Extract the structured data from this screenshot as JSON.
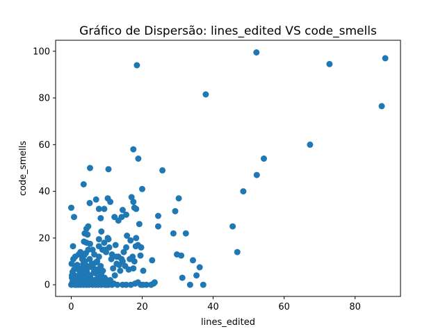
{
  "chart_data": {
    "type": "scatter",
    "title": "Gráfico de Dispersão: lines_edited VS code_smells",
    "xlabel": "lines_edited",
    "ylabel": "code_smells",
    "xlim": [
      -4.4,
      92.8
    ],
    "ylim": [
      -5,
      104.7
    ],
    "xticks": [
      0,
      20,
      40,
      60,
      80
    ],
    "yticks": [
      0,
      20,
      40,
      60,
      80,
      100
    ],
    "xtick_labels": [
      "0",
      "20",
      "40",
      "60",
      "80"
    ],
    "ytick_labels": [
      "0",
      "20",
      "40",
      "60",
      "80",
      "100"
    ],
    "grid": false,
    "marker_color": "#1f77b4",
    "series": [
      {
        "points": [
          [
            0,
            0
          ],
          [
            0.3,
            1
          ],
          [
            0.5,
            2
          ],
          [
            0.7,
            0.5
          ],
          [
            0.2,
            3
          ],
          [
            0.9,
            4
          ],
          [
            1,
            0
          ],
          [
            1.2,
            1.5
          ],
          [
            1.5,
            0
          ],
          [
            1.8,
            2.5
          ],
          [
            2,
            0
          ],
          [
            2.2,
            1
          ],
          [
            2.5,
            3.5
          ],
          [
            2.7,
            0
          ],
          [
            3,
            1
          ],
          [
            3.2,
            2
          ],
          [
            3.5,
            0
          ],
          [
            3.8,
            5
          ],
          [
            4,
            1
          ],
          [
            4.3,
            0
          ],
          [
            4.6,
            2
          ],
          [
            5,
            0
          ],
          [
            5.3,
            3
          ],
          [
            5.6,
            1
          ],
          [
            6,
            0
          ],
          [
            6.4,
            2
          ],
          [
            6.8,
            0
          ],
          [
            7.2,
            1
          ],
          [
            7.6,
            0
          ],
          [
            8,
            3
          ],
          [
            8.5,
            0
          ],
          [
            9,
            1.5
          ],
          [
            9.5,
            0
          ],
          [
            10,
            2
          ],
          [
            10.5,
            0
          ],
          [
            11,
            1
          ],
          [
            11.5,
            0
          ],
          [
            12,
            0.5
          ],
          [
            0.4,
            5.5
          ],
          [
            0.8,
            6.5
          ],
          [
            1.3,
            7.5
          ],
          [
            1.7,
            8.5
          ],
          [
            2.3,
            6
          ],
          [
            2.9,
            7
          ],
          [
            3.4,
            9
          ],
          [
            3.9,
            10
          ],
          [
            4.4,
            8
          ],
          [
            0.1,
            9
          ],
          [
            0.6,
            11
          ],
          [
            1.1,
            12
          ],
          [
            0.5,
            16.5
          ],
          [
            2.1,
            13
          ],
          [
            2.6,
            14
          ],
          [
            3.1,
            11
          ],
          [
            3.6,
            12.5
          ],
          [
            4.1,
            13.5
          ],
          [
            4.8,
            15
          ],
          [
            5.2,
            11
          ],
          [
            5.8,
            9
          ],
          [
            6.3,
            7
          ],
          [
            6.8,
            5
          ],
          [
            7.3,
            10
          ],
          [
            7.8,
            12
          ],
          [
            8.3,
            8
          ],
          [
            8.8,
            15
          ],
          [
            9.3,
            18
          ],
          [
            9.8,
            14
          ],
          [
            10.3,
            20
          ],
          [
            10.7,
            16
          ],
          [
            11.3,
            11
          ],
          [
            11.8,
            7
          ],
          [
            12.3,
            4
          ],
          [
            12.8,
            9
          ],
          [
            13.3,
            12
          ],
          [
            13.8,
            6
          ],
          [
            14.2,
            11
          ],
          [
            14.8,
            14
          ],
          [
            15.2,
            8
          ],
          [
            15.7,
            21
          ],
          [
            16.2,
            6.5
          ],
          [
            16.7,
            19
          ],
          [
            17.3,
            12
          ],
          [
            17.8,
            10
          ],
          [
            18.3,
            20
          ],
          [
            18.8,
            17
          ],
          [
            19.2,
            26
          ],
          [
            19.7,
            16
          ],
          [
            20.3,
            6
          ],
          [
            21.2,
            0
          ],
          [
            22.5,
            0
          ],
          [
            22.8,
            10.5
          ],
          [
            23.5,
            1
          ],
          [
            24.5,
            29.5
          ],
          [
            24.5,
            25
          ],
          [
            28.8,
            22
          ],
          [
            29.3,
            31.5
          ],
          [
            29.8,
            13
          ],
          [
            30.3,
            37
          ],
          [
            31,
            12.5
          ],
          [
            31.3,
            3
          ],
          [
            32.3,
            22
          ],
          [
            33.5,
            0
          ],
          [
            34.3,
            10.5
          ],
          [
            35.3,
            4
          ],
          [
            36.2,
            7.5
          ],
          [
            37.2,
            0
          ],
          [
            45.5,
            25
          ],
          [
            46.8,
            14
          ],
          [
            48.5,
            40
          ],
          [
            52.3,
            47
          ],
          [
            54.3,
            54
          ],
          [
            67.3,
            60
          ],
          [
            87.5,
            76.5
          ],
          [
            72.8,
            94.5
          ],
          [
            88.5,
            97
          ],
          [
            52.2,
            99.5
          ],
          [
            18.5,
            94
          ],
          [
            37.9,
            81.5
          ],
          [
            17.5,
            58
          ],
          [
            18.9,
            54
          ],
          [
            5.3,
            50
          ],
          [
            10.5,
            49.5
          ],
          [
            25.7,
            49
          ],
          [
            3.5,
            43
          ],
          [
            20,
            41
          ],
          [
            10.3,
            37
          ],
          [
            17,
            37.5
          ],
          [
            7,
            36.5
          ],
          [
            5.2,
            35
          ],
          [
            11,
            35.5
          ],
          [
            17.5,
            35.5
          ],
          [
            0,
            33
          ],
          [
            17.8,
            33
          ],
          [
            18.3,
            32.5
          ],
          [
            7.8,
            32.5
          ],
          [
            9.3,
            32.5
          ],
          [
            14.5,
            32
          ],
          [
            0.8,
            29
          ],
          [
            12.2,
            29
          ],
          [
            15.5,
            30
          ],
          [
            14.2,
            29
          ],
          [
            8.3,
            28.5
          ],
          [
            13.3,
            27.5
          ],
          [
            4.8,
            25
          ],
          [
            4.3,
            24
          ],
          [
            3.8,
            22
          ],
          [
            4.6,
            21.5
          ],
          [
            8.5,
            22.8
          ],
          [
            7.8,
            19.5
          ],
          [
            10.5,
            19.5
          ],
          [
            3.6,
            18.5
          ],
          [
            4.3,
            18
          ],
          [
            5.3,
            17.5
          ],
          [
            12.5,
            17
          ],
          [
            15.5,
            16
          ],
          [
            18.2,
            16.5
          ],
          [
            6,
            15
          ],
          [
            7.8,
            16.5
          ],
          [
            9.5,
            15
          ],
          [
            11.5,
            13
          ],
          [
            12.8,
            12
          ],
          [
            14.5,
            10
          ],
          [
            13.5,
            8.5
          ],
          [
            16.5,
            11
          ],
          [
            17.5,
            7
          ],
          [
            19.5,
            12.5
          ],
          [
            6.5,
            13
          ],
          [
            7.5,
            3
          ],
          [
            8.5,
            5
          ],
          [
            10,
            0
          ],
          [
            11,
            2
          ],
          [
            13,
            0
          ],
          [
            14.5,
            0
          ],
          [
            15.5,
            0
          ],
          [
            16.8,
            0
          ],
          [
            18,
            0.5
          ],
          [
            18.8,
            1
          ],
          [
            19.6,
            0
          ],
          [
            20.2,
            0
          ],
          [
            23.2,
            0.5
          ],
          [
            0.2,
            4
          ],
          [
            0.9,
            2
          ],
          [
            1.4,
            3
          ],
          [
            1.9,
            1
          ],
          [
            2.4,
            4.5
          ],
          [
            2.9,
            2
          ],
          [
            3.4,
            6
          ],
          [
            3.9,
            3
          ],
          [
            4.4,
            5.5
          ],
          [
            4.9,
            7.5
          ],
          [
            5.4,
            4
          ],
          [
            5.9,
            8.5
          ],
          [
            6.4,
            5.5
          ],
          [
            6.9,
            9.5
          ],
          [
            7.4,
            6.5
          ],
          [
            7.9,
            2
          ],
          [
            8.4,
            4
          ],
          [
            8.9,
            6
          ],
          [
            9.4,
            3
          ],
          [
            9.9,
            1
          ],
          [
            10.4,
            0.5
          ]
        ]
      }
    ]
  }
}
